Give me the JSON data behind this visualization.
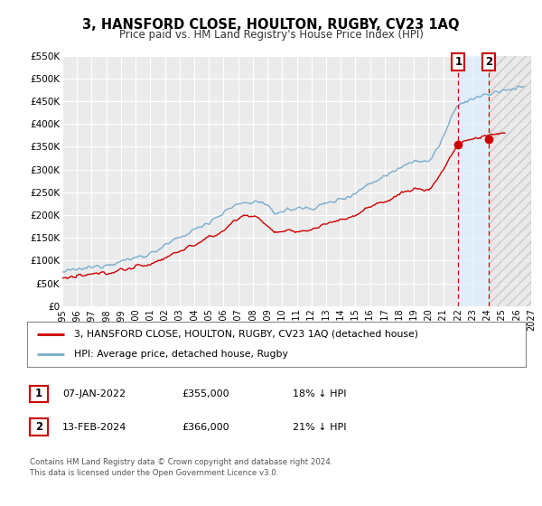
{
  "title": "3, HANSFORD CLOSE, HOULTON, RUGBY, CV23 1AQ",
  "subtitle": "Price paid vs. HM Land Registry's House Price Index (HPI)",
  "background_color": "#ffffff",
  "plot_bg_color": "#ebebeb",
  "grid_color": "#ffffff",
  "red_line_color": "#cc0000",
  "blue_line_color": "#7aadcf",
  "highlight_bg_color": "#ddeeff",
  "vline_color": "#cc0000",
  "marker1_x": 2022.03,
  "marker2_x": 2024.12,
  "marker1_y": 355000,
  "marker2_y": 366000,
  "legend_label_red": "3, HANSFORD CLOSE, HOULTON, RUGBY, CV23 1AQ (detached house)",
  "legend_label_blue": "HPI: Average price, detached house, Rugby",
  "table_row1": [
    "1",
    "07-JAN-2022",
    "£355,000",
    "18% ↓ HPI"
  ],
  "table_row2": [
    "2",
    "13-FEB-2024",
    "£366,000",
    "21% ↓ HPI"
  ],
  "footer": "Contains HM Land Registry data © Crown copyright and database right 2024.\nThis data is licensed under the Open Government Licence v3.0.",
  "xmin": 1995,
  "xmax": 2027,
  "ymin": 0,
  "ymax": 550000,
  "yticks": [
    0,
    50000,
    100000,
    150000,
    200000,
    250000,
    300000,
    350000,
    400000,
    450000,
    500000,
    550000
  ],
  "ytick_labels": [
    "£0",
    "£50K",
    "£100K",
    "£150K",
    "£200K",
    "£250K",
    "£300K",
    "£350K",
    "£400K",
    "£450K",
    "£500K",
    "£550K"
  ],
  "xticks": [
    1995,
    1996,
    1997,
    1998,
    1999,
    2000,
    2001,
    2002,
    2003,
    2004,
    2005,
    2006,
    2007,
    2008,
    2009,
    2010,
    2011,
    2012,
    2013,
    2014,
    2015,
    2016,
    2017,
    2018,
    2019,
    2020,
    2021,
    2022,
    2023,
    2024,
    2025,
    2026,
    2027
  ]
}
